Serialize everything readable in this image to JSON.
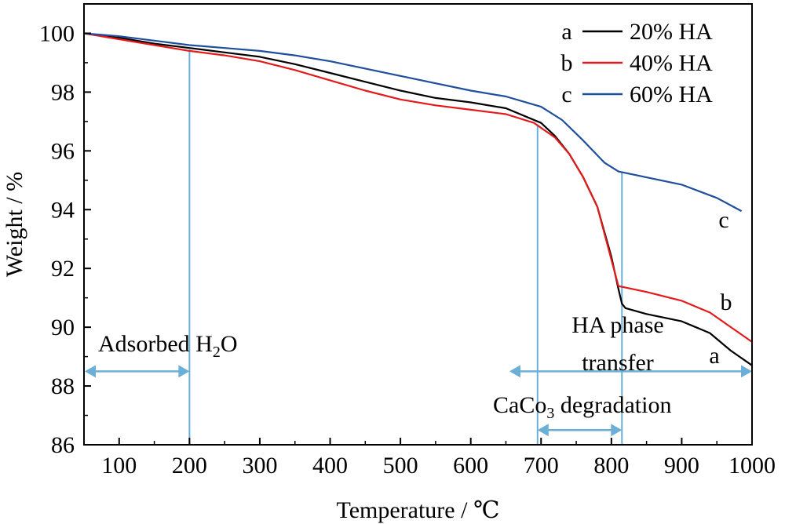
{
  "chart_data": {
    "type": "line",
    "xlabel": "Temperature / ℃",
    "ylabel": "Weight / %",
    "xlim": [
      50,
      1000
    ],
    "ylim": [
      86,
      101
    ],
    "xticks": [
      100,
      200,
      300,
      400,
      500,
      600,
      700,
      800,
      900,
      1000
    ],
    "yticks": [
      86,
      88,
      90,
      92,
      94,
      96,
      98,
      100
    ],
    "grid": false,
    "legend_position": "top-right",
    "series": [
      {
        "name": "20% HA",
        "letter": "a",
        "color": "#000000",
        "points": [
          [
            50,
            100.0
          ],
          [
            100,
            99.85
          ],
          [
            150,
            99.65
          ],
          [
            200,
            99.5
          ],
          [
            250,
            99.35
          ],
          [
            300,
            99.2
          ],
          [
            350,
            98.95
          ],
          [
            400,
            98.65
          ],
          [
            450,
            98.35
          ],
          [
            500,
            98.05
          ],
          [
            550,
            97.8
          ],
          [
            600,
            97.65
          ],
          [
            650,
            97.45
          ],
          [
            700,
            96.95
          ],
          [
            720,
            96.5
          ],
          [
            740,
            95.9
          ],
          [
            760,
            95.1
          ],
          [
            780,
            94.1
          ],
          [
            800,
            92.4
          ],
          [
            810,
            91.3
          ],
          [
            815,
            90.8
          ],
          [
            820,
            90.65
          ],
          [
            850,
            90.45
          ],
          [
            900,
            90.2
          ],
          [
            940,
            89.8
          ],
          [
            970,
            89.2
          ],
          [
            1000,
            88.7
          ]
        ]
      },
      {
        "name": "40% HA",
        "letter": "b",
        "color": "#e31a1c",
        "points": [
          [
            50,
            100.0
          ],
          [
            100,
            99.8
          ],
          [
            150,
            99.6
          ],
          [
            200,
            99.4
          ],
          [
            250,
            99.25
          ],
          [
            300,
            99.05
          ],
          [
            350,
            98.75
          ],
          [
            400,
            98.4
          ],
          [
            450,
            98.05
          ],
          [
            500,
            97.75
          ],
          [
            550,
            97.55
          ],
          [
            600,
            97.4
          ],
          [
            650,
            97.25
          ],
          [
            690,
            96.95
          ],
          [
            720,
            96.45
          ],
          [
            740,
            95.9
          ],
          [
            760,
            95.1
          ],
          [
            780,
            94.1
          ],
          [
            800,
            92.3
          ],
          [
            810,
            91.4
          ],
          [
            820,
            91.35
          ],
          [
            850,
            91.2
          ],
          [
            900,
            90.9
          ],
          [
            940,
            90.5
          ],
          [
            970,
            90.0
          ],
          [
            1000,
            89.5
          ]
        ]
      },
      {
        "name": "60% HA",
        "letter": "c",
        "color": "#1f4e9c",
        "points": [
          [
            50,
            100.0
          ],
          [
            100,
            99.9
          ],
          [
            150,
            99.75
          ],
          [
            200,
            99.6
          ],
          [
            250,
            99.5
          ],
          [
            300,
            99.4
          ],
          [
            350,
            99.25
          ],
          [
            400,
            99.05
          ],
          [
            450,
            98.8
          ],
          [
            500,
            98.55
          ],
          [
            550,
            98.3
          ],
          [
            600,
            98.05
          ],
          [
            650,
            97.85
          ],
          [
            700,
            97.5
          ],
          [
            730,
            97.05
          ],
          [
            760,
            96.35
          ],
          [
            790,
            95.6
          ],
          [
            810,
            95.3
          ],
          [
            820,
            95.25
          ],
          [
            850,
            95.1
          ],
          [
            900,
            94.85
          ],
          [
            950,
            94.4
          ],
          [
            985,
            93.95
          ]
        ]
      }
    ],
    "annotations": [
      {
        "label_before": "Adsorbed H",
        "sub": "2",
        "label_after": "O",
        "x_start": 50,
        "x_end": 200,
        "arrow_y": 88.5
      },
      {
        "label_line1": "HA phase",
        "label_line2": "transfer",
        "x_start": 655,
        "x_end": 1000,
        "arrow_y": 88.5
      },
      {
        "label_before": "CaCo",
        "sub": "3",
        "label_after": " degradation",
        "x_start": 695,
        "x_end": 815,
        "arrow_y": 86.5
      }
    ],
    "guide_lines": [
      {
        "x": 200,
        "y_top": 99.45
      },
      {
        "x": 695,
        "y_top": 96.9
      },
      {
        "x": 815,
        "y_top": 95.3
      }
    ],
    "arrow_color": "#6baed6"
  }
}
